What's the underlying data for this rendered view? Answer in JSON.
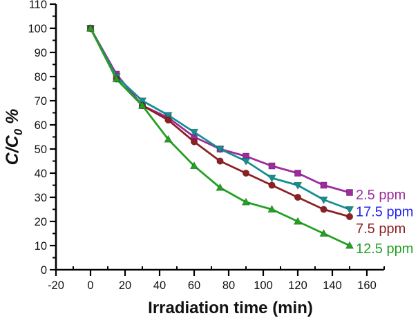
{
  "chart_data": {
    "type": "line",
    "title": "",
    "xlabel": "Irradiation time (min)",
    "ylabel": "C/C0 %",
    "ylabel_parts": {
      "main": "C/C",
      "sub": "0",
      "suffix": " %"
    },
    "xlim": [
      -20,
      170
    ],
    "ylim": [
      0,
      110
    ],
    "x_major_ticks": [
      -20,
      0,
      20,
      40,
      60,
      80,
      100,
      120,
      140,
      160
    ],
    "x_minor_ticks": [
      -10,
      10,
      30,
      50,
      70,
      90,
      110,
      130,
      150,
      170
    ],
    "y_major_ticks": [
      0,
      10,
      20,
      30,
      40,
      50,
      60,
      70,
      80,
      90,
      100,
      110
    ],
    "y_minor_ticks": [
      5,
      15,
      25,
      35,
      45,
      55,
      65,
      75,
      85,
      95,
      105
    ],
    "grid": false,
    "legend_position": "inline-right-of-last-point",
    "x": [
      0,
      15,
      30,
      45,
      60,
      75,
      90,
      105,
      120,
      135,
      150
    ],
    "series": [
      {
        "name": "2.5 ppm",
        "marker": "square",
        "color": "#9E2B9E",
        "label_color": "#9E2B9E",
        "values": [
          100,
          81,
          68,
          63,
          55,
          50,
          47,
          43,
          40,
          35,
          32
        ]
      },
      {
        "name": "17.5 ppm",
        "marker": "triangle-down",
        "color": "#158F8F",
        "label_color": "#2525EF",
        "values": [
          100,
          80,
          70,
          64,
          57,
          50,
          45,
          38,
          35,
          29,
          25
        ]
      },
      {
        "name": "7.5 ppm",
        "marker": "circle",
        "color": "#8E2023",
        "label_color": "#8E2023",
        "values": [
          100,
          79,
          68,
          62,
          53,
          45,
          40,
          35,
          30,
          25,
          22
        ]
      },
      {
        "name": "12.5 ppm",
        "marker": "triangle-up",
        "color": "#22A122",
        "label_color": "#22A122",
        "values": [
          100,
          79,
          68,
          54,
          43,
          34,
          28,
          25,
          20,
          15,
          10
        ]
      }
    ]
  }
}
